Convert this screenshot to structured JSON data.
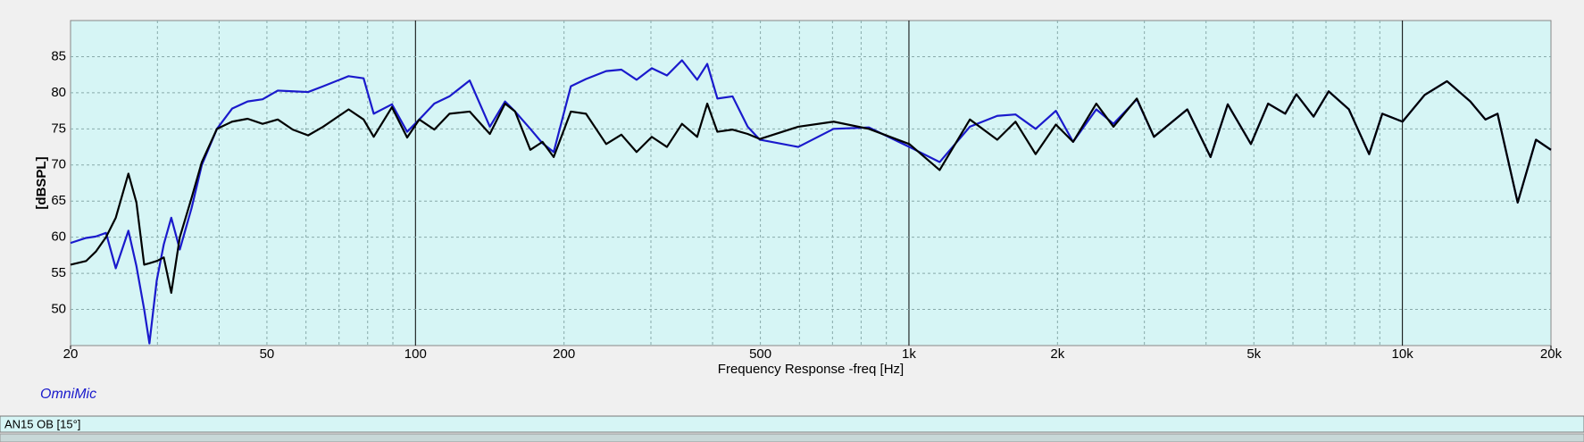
{
  "chart_data": {
    "type": "line",
    "x_label": "Frequency Response -freq [Hz]",
    "y_label": "[dBSPL]",
    "log_x": true,
    "grid": true,
    "xlim": [
      20,
      20000
    ],
    "ylim": [
      45,
      90
    ],
    "xticks": [
      20,
      50,
      100,
      200,
      500,
      {
        "value": 1000,
        "label": "1k"
      },
      {
        "value": 2000,
        "label": "2k"
      },
      {
        "value": 5000,
        "label": "5k"
      },
      {
        "value": 10000,
        "label": "10k"
      },
      {
        "value": 20000,
        "label": "20k"
      }
    ],
    "xgrid_minor": [
      30,
      40,
      60,
      70,
      80,
      90,
      300,
      400,
      600,
      700,
      800,
      900,
      3000,
      4000,
      6000,
      7000,
      8000,
      9000
    ],
    "yticks": [
      50,
      55,
      60,
      65,
      70,
      75,
      80,
      85
    ],
    "x": [
      20,
      21.5,
      22.5,
      23.6,
      24.7,
      26.2,
      27.2,
      28.2,
      28.9,
      29.9,
      30.9,
      32.0,
      33.3,
      35.2,
      36.9,
      39.6,
      42.5,
      45.7,
      49.0,
      52.6,
      56.4,
      60.6,
      65.0,
      73.2,
      78.5,
      82.3,
      89.6,
      96.2,
      101.8,
      109.2,
      117.2,
      128.8,
      141.5,
      151.9,
      159.2,
      170.9,
      180.9,
      190.6,
      206.5,
      221.6,
      243.5,
      261.4,
      280.6,
      301.2,
      323.3,
      346.8,
      372.3,
      390.2,
      409.1,
      439.1,
      471.2,
      498.7,
      596.6,
      703.6,
      829.6,
      1002,
      1154,
      1329,
      1510,
      1644,
      1806,
      1985,
      2151,
      2397,
      2597,
      2896,
      3137,
      3665,
      4085,
      4426,
      4932,
      5344,
      5788,
      6097,
      6607,
      7089,
      7790,
      8562,
      9104,
      10005,
      11094,
      12311,
      13725,
      14729,
      15588,
      17124,
      18649,
      20000
    ],
    "series": [
      {
        "color": "#1a1acc",
        "values": [
          59.2,
          59.9,
          60.1,
          60.6,
          55.7,
          60.9,
          56,
          50,
          45.3,
          54,
          59,
          62.7,
          58.3,
          64.1,
          70,
          75,
          77.8,
          78.8,
          79.1,
          80.3,
          80.2,
          80.1,
          80.9,
          82.3,
          82,
          77.1,
          78.4,
          74.6,
          76.3,
          78.5,
          79.5,
          81.7,
          75.3,
          78.8,
          77.4,
          75,
          73,
          71.8,
          80.9,
          81.9,
          83,
          83.2,
          81.8,
          83.4,
          82.4,
          84.5,
          81.8,
          84,
          79.2,
          79.5,
          75.3,
          73.5,
          72.5,
          75,
          75.2,
          72.5,
          70.4,
          75.3,
          76.8,
          77,
          75,
          77.5,
          73.2,
          77.7,
          75.7,
          79.1,
          73.9,
          77.7,
          71.1,
          78.4,
          72.9,
          78.5,
          77.1,
          79.8,
          76.7,
          80.2,
          77.7,
          71.5,
          77.1,
          76,
          79.7,
          81.6,
          78.8,
          76.3,
          77.1,
          64.8,
          73.5,
          72.1
        ]
      },
      {
        "color": "#000000",
        "values": [
          56.2,
          56.7,
          58,
          60,
          62.7,
          68.8,
          64.8,
          56.2,
          56.4,
          56.7,
          57.2,
          52.3,
          60,
          65.5,
          70.4,
          75,
          76,
          76.4,
          75.7,
          76.3,
          74.9,
          74.1,
          75.3,
          77.7,
          76.3,
          73.9,
          78,
          73.8,
          76.3,
          74.9,
          77.1,
          77.4,
          74.3,
          78.5,
          77.4,
          72.1,
          73.2,
          71.1,
          77.4,
          77.1,
          72.9,
          74.2,
          71.8,
          73.9,
          72.5,
          75.7,
          73.9,
          78.5,
          74.6,
          74.9,
          74.3,
          73.6,
          75.3,
          76,
          75,
          72.9,
          69.3,
          76.3,
          73.5,
          76,
          71.5,
          75.6,
          73.2,
          78.5,
          75.3,
          79.2,
          73.9,
          77.7,
          71.1,
          78.4,
          72.9,
          78.5,
          77.1,
          79.8,
          76.7,
          80.2,
          77.7,
          71.5,
          77.1,
          76,
          79.7,
          81.6,
          78.8,
          76.3,
          77.1,
          64.8,
          73.5,
          72.1
        ]
      }
    ]
  },
  "legend_note": "OmniMic",
  "status_bar": "AN15 OB [15°]"
}
